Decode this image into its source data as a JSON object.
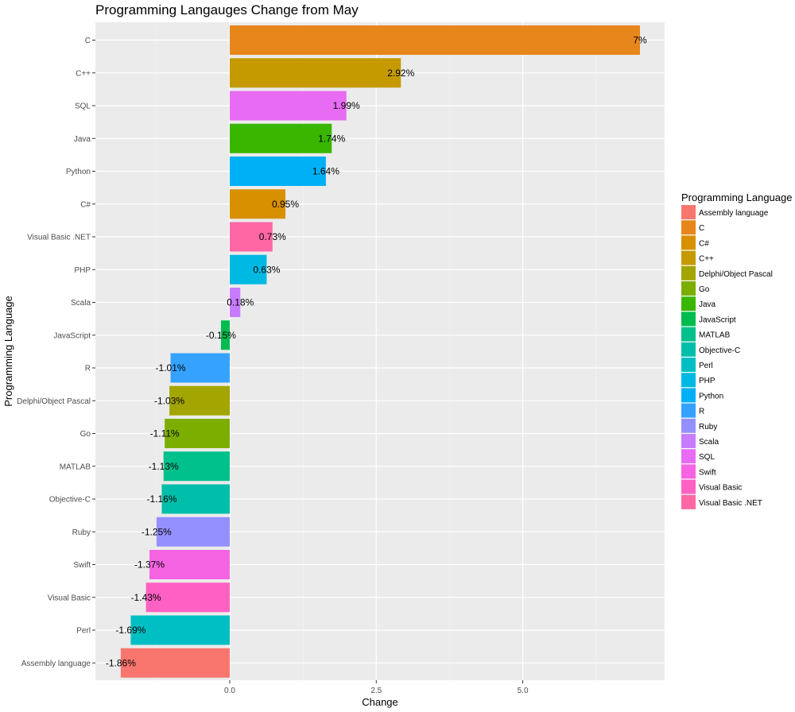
{
  "chart_data": {
    "type": "bar",
    "orientation": "horizontal",
    "title": "Programming Langauges Change from May",
    "xlabel": "Change",
    "ylabel": "Programming Language",
    "xlim": [
      -2.3,
      7.35
    ],
    "x_ticks": [
      0,
      2.5,
      5
    ],
    "x_tick_labels": [
      "0.0",
      "2.5",
      "5.0"
    ],
    "grid": true,
    "legend_position": "right",
    "legend": {
      "title": "Programming Language",
      "entries": [
        {
          "label": "Assembly language",
          "color": "#F8766D"
        },
        {
          "label": "C",
          "color": "#E7861B"
        },
        {
          "label": "C#",
          "color": "#D89000"
        },
        {
          "label": "C++",
          "color": "#C49A00"
        },
        {
          "label": "Delphi/Object Pascal",
          "color": "#A3A500"
        },
        {
          "label": "Go",
          "color": "#7CAE00"
        },
        {
          "label": "Java",
          "color": "#39B600"
        },
        {
          "label": "JavaScript",
          "color": "#00BB4E"
        },
        {
          "label": "MATLAB",
          "color": "#00C08B"
        },
        {
          "label": "Objective-C",
          "color": "#00BFAA"
        },
        {
          "label": "Perl",
          "color": "#00BFC4"
        },
        {
          "label": "PHP",
          "color": "#00B9E3"
        },
        {
          "label": "Python",
          "color": "#00B0F6"
        },
        {
          "label": "R",
          "color": "#35A2FF"
        },
        {
          "label": "Ruby",
          "color": "#9590FF"
        },
        {
          "label": "Scala",
          "color": "#C77CFF"
        },
        {
          "label": "SQL",
          "color": "#E76BF3"
        },
        {
          "label": "Swift",
          "color": "#F564E3"
        },
        {
          "label": "Visual Basic",
          "color": "#FF61C3"
        },
        {
          "label": "Visual Basic .NET",
          "color": "#FF67A4"
        }
      ]
    },
    "bars": [
      {
        "category": "C",
        "value": 7,
        "label": "7%"
      },
      {
        "category": "C++",
        "value": 2.92,
        "label": "2.92%"
      },
      {
        "category": "SQL",
        "value": 1.99,
        "label": "1.99%"
      },
      {
        "category": "Java",
        "value": 1.74,
        "label": "1.74%"
      },
      {
        "category": "Python",
        "value": 1.64,
        "label": "1.64%"
      },
      {
        "category": "C#",
        "value": 0.95,
        "label": "0.95%"
      },
      {
        "category": "Visual Basic .NET",
        "value": 0.73,
        "label": "0.73%"
      },
      {
        "category": "PHP",
        "value": 0.63,
        "label": "0.63%"
      },
      {
        "category": "Scala",
        "value": 0.18,
        "label": "0.18%"
      },
      {
        "category": "JavaScript",
        "value": -0.15,
        "label": "-0.15%"
      },
      {
        "category": "R",
        "value": -1.01,
        "label": "-1.01%"
      },
      {
        "category": "Delphi/Object Pascal",
        "value": -1.03,
        "label": "-1.03%"
      },
      {
        "category": "Go",
        "value": -1.11,
        "label": "-1.11%"
      },
      {
        "category": "MATLAB",
        "value": -1.13,
        "label": "-1.13%"
      },
      {
        "category": "Objective-C",
        "value": -1.16,
        "label": "-1.16%"
      },
      {
        "category": "Ruby",
        "value": -1.25,
        "label": "-1.25%"
      },
      {
        "category": "Swift",
        "value": -1.37,
        "label": "-1.37%"
      },
      {
        "category": "Visual Basic",
        "value": -1.43,
        "label": "-1.43%"
      },
      {
        "category": "Perl",
        "value": -1.69,
        "label": "-1.69%"
      },
      {
        "category": "Assembly language",
        "value": -1.86,
        "label": "-1.86%"
      }
    ]
  }
}
